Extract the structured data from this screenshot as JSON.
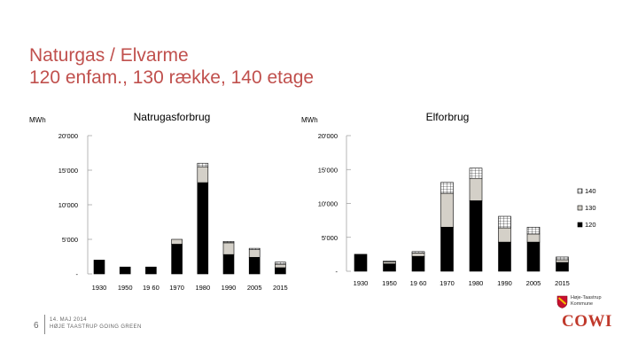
{
  "slide": {
    "title_line1": "Naturgas / Elvarme",
    "title_line2": "120 enfam., 130 række, 140 etage",
    "page_number": "6",
    "footer_line1": "14. MAJ 2014",
    "footer_line2": "HØJE TAASTRUP GOING GREEN",
    "kommune_line1": "Høje-Taastrup",
    "kommune_line2": "Kommune",
    "company": "COWI"
  },
  "colors": {
    "title": "#c0504d",
    "s120": "#000000",
    "s130": "#d4d0c8",
    "s140": "#ffffff",
    "axis": "#999999"
  },
  "chart_data": [
    {
      "type": "bar",
      "stacked": true,
      "title": "Natrugasforbrug",
      "ylabel": "MWh",
      "xlabel": "",
      "ylim": [
        0,
        20000
      ],
      "yticks": [
        0,
        5000,
        10000,
        15000,
        20000
      ],
      "ytick_labels": [
        "-",
        "5'000",
        "10'000",
        "15'000",
        "20'000"
      ],
      "categories": [
        "1930",
        "1950",
        "19 60",
        "1970",
        "1980",
        "1990",
        "2005",
        "2015"
      ],
      "series": [
        {
          "name": "120",
          "values": [
            2000,
            1000,
            1000,
            4300,
            13200,
            2800,
            2400,
            900
          ]
        },
        {
          "name": "130",
          "values": [
            0,
            0,
            0,
            700,
            2300,
            1700,
            1100,
            500
          ]
        },
        {
          "name": "140",
          "values": [
            0,
            0,
            0,
            0,
            500,
            200,
            200,
            300
          ]
        }
      ],
      "legend": "none"
    },
    {
      "type": "bar",
      "stacked": true,
      "title": "Elforbrug",
      "ylabel": "MWh",
      "xlabel": "",
      "ylim": [
        0,
        20000
      ],
      "yticks": [
        0,
        5000,
        10000,
        15000,
        20000
      ],
      "ytick_labels": [
        "-",
        "5'000",
        "10'000",
        "15'000",
        "20'000"
      ],
      "categories": [
        "1930",
        "1950",
        "19 60",
        "1970",
        "1980",
        "1990",
        "2005",
        "2015"
      ],
      "series": [
        {
          "name": "120",
          "values": [
            2500,
            1100,
            2200,
            6500,
            10400,
            4300,
            4300,
            1300
          ]
        },
        {
          "name": "130",
          "values": [
            0,
            300,
            500,
            5000,
            3300,
            2100,
            1200,
            400
          ]
        },
        {
          "name": "140",
          "values": [
            0,
            100,
            200,
            1600,
            1500,
            1700,
            1000,
            400
          ]
        }
      ],
      "legend": "right"
    }
  ],
  "legend_labels": [
    "140",
    "130",
    "120"
  ]
}
